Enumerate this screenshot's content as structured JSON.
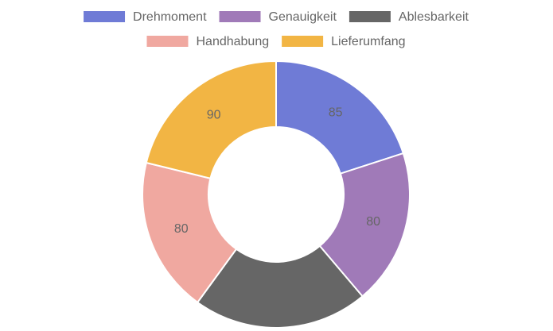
{
  "chart_data": {
    "type": "donut",
    "categories": [
      "Drehmoment",
      "Genauigkeit",
      "Ablesbarkeit",
      "Handhabung",
      "Lieferumfang"
    ],
    "values": [
      85,
      80,
      90,
      80,
      90
    ],
    "colors": [
      "#6f7bd6",
      "#a07ab8",
      "#666666",
      "#f0a8a0",
      "#f2b544"
    ],
    "legend": "top"
  }
}
